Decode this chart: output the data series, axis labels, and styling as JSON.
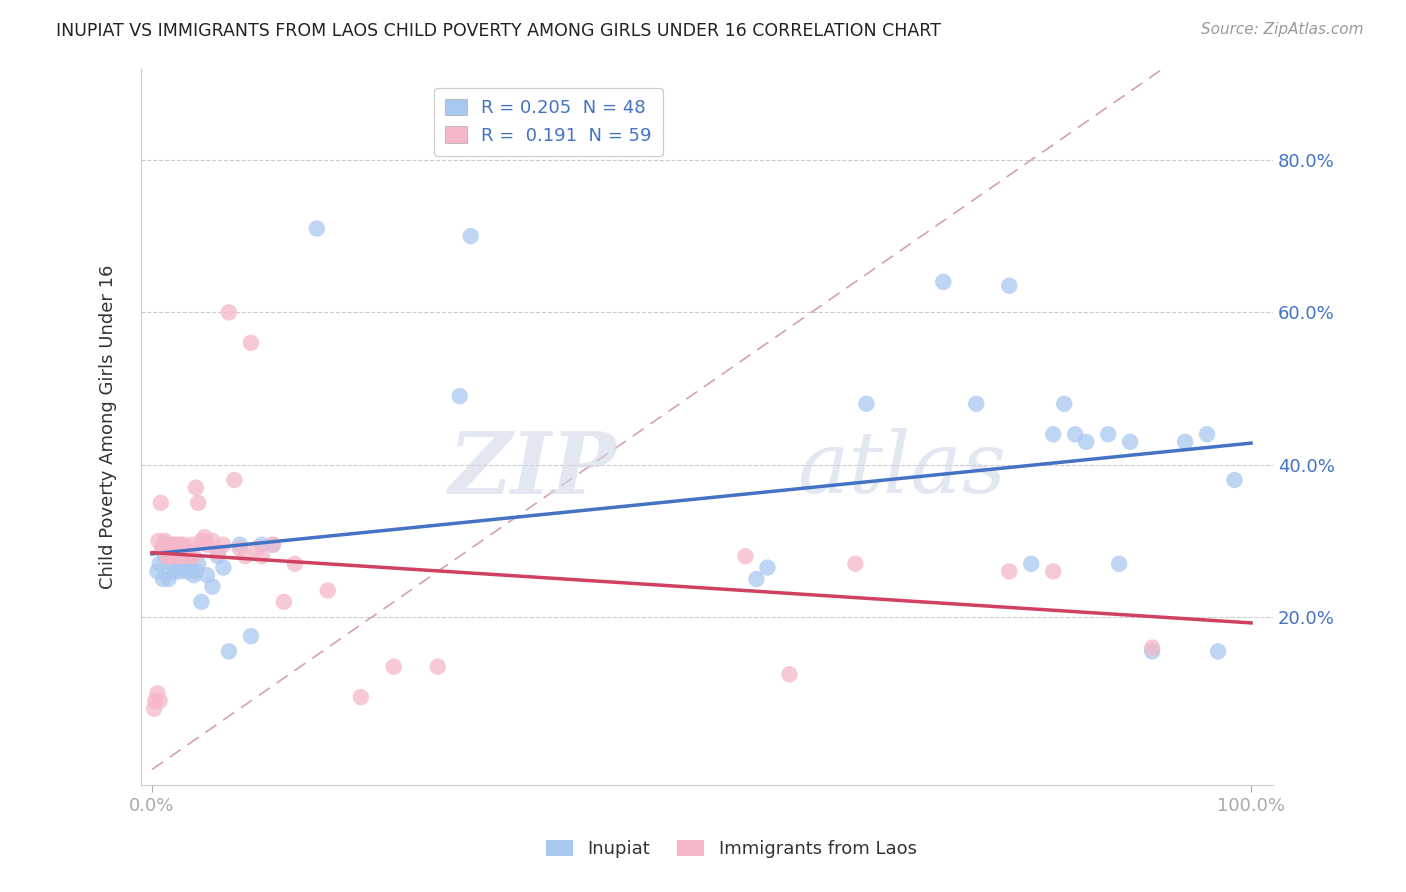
{
  "title": "INUPIAT VS IMMIGRANTS FROM LAOS CHILD POVERTY AMONG GIRLS UNDER 16 CORRELATION CHART",
  "source": "Source: ZipAtlas.com",
  "ylabel": "Child Poverty Among Girls Under 16",
  "xlabel": "",
  "xlim": [
    -0.01,
    1.02
  ],
  "ylim": [
    -0.02,
    0.92
  ],
  "xtick_positions": [
    0.0,
    1.0
  ],
  "xticklabels": [
    "0.0%",
    "100.0%"
  ],
  "ytick_positions": [
    0.2,
    0.4,
    0.6,
    0.8
  ],
  "yticklabels_right": [
    "20.0%",
    "40.0%",
    "60.0%",
    "80.0%"
  ],
  "watermark_zip": "ZIP",
  "watermark_atlas": "atlas",
  "legend_label1": "R = 0.205  N = 48",
  "legend_label2": "R =  0.191  N = 59",
  "color_inupiat": "#a8c8f0",
  "color_laos": "#f5b8c8",
  "color_inupiat_line": "#4472c4",
  "color_laos_line": "#d04060",
  "color_diag": "#d8a0a8",
  "color_tick_labels": "#4472c4",
  "inupiat_x": [
    0.005,
    0.007,
    0.01,
    0.012,
    0.015,
    0.018,
    0.02,
    0.022,
    0.025,
    0.028,
    0.03,
    0.032,
    0.035,
    0.038,
    0.04,
    0.042,
    0.045,
    0.05,
    0.055,
    0.06,
    0.065,
    0.07,
    0.08,
    0.09,
    0.1,
    0.11,
    0.15,
    0.28,
    0.29,
    0.55,
    0.56,
    0.65,
    0.72,
    0.75,
    0.78,
    0.8,
    0.82,
    0.83,
    0.84,
    0.85,
    0.87,
    0.88,
    0.89,
    0.91,
    0.94,
    0.96,
    0.97,
    0.985
  ],
  "inupiat_y": [
    0.26,
    0.27,
    0.25,
    0.28,
    0.25,
    0.27,
    0.26,
    0.275,
    0.26,
    0.27,
    0.265,
    0.26,
    0.27,
    0.255,
    0.26,
    0.27,
    0.22,
    0.255,
    0.24,
    0.28,
    0.265,
    0.155,
    0.295,
    0.175,
    0.295,
    0.295,
    0.71,
    0.49,
    0.7,
    0.25,
    0.265,
    0.48,
    0.64,
    0.48,
    0.635,
    0.27,
    0.44,
    0.48,
    0.44,
    0.43,
    0.44,
    0.27,
    0.43,
    0.155,
    0.43,
    0.44,
    0.155,
    0.38
  ],
  "laos_x": [
    0.002,
    0.003,
    0.005,
    0.006,
    0.007,
    0.008,
    0.009,
    0.01,
    0.011,
    0.012,
    0.013,
    0.014,
    0.015,
    0.016,
    0.017,
    0.018,
    0.019,
    0.02,
    0.021,
    0.022,
    0.023,
    0.024,
    0.025,
    0.026,
    0.027,
    0.028,
    0.03,
    0.032,
    0.034,
    0.036,
    0.038,
    0.04,
    0.042,
    0.045,
    0.048,
    0.05,
    0.055,
    0.06,
    0.065,
    0.07,
    0.075,
    0.08,
    0.085,
    0.09,
    0.095,
    0.1,
    0.11,
    0.12,
    0.13,
    0.16,
    0.19,
    0.22,
    0.26,
    0.54,
    0.58,
    0.64,
    0.78,
    0.82,
    0.91
  ],
  "laos_y": [
    0.08,
    0.09,
    0.1,
    0.3,
    0.09,
    0.35,
    0.29,
    0.29,
    0.295,
    0.3,
    0.295,
    0.28,
    0.28,
    0.295,
    0.29,
    0.28,
    0.295,
    0.29,
    0.28,
    0.295,
    0.285,
    0.28,
    0.295,
    0.29,
    0.28,
    0.295,
    0.29,
    0.29,
    0.28,
    0.295,
    0.28,
    0.37,
    0.35,
    0.3,
    0.305,
    0.295,
    0.3,
    0.285,
    0.295,
    0.6,
    0.38,
    0.29,
    0.28,
    0.56,
    0.29,
    0.28,
    0.295,
    0.22,
    0.27,
    0.235,
    0.095,
    0.135,
    0.135,
    0.28,
    0.125,
    0.27,
    0.26,
    0.26,
    0.16
  ]
}
